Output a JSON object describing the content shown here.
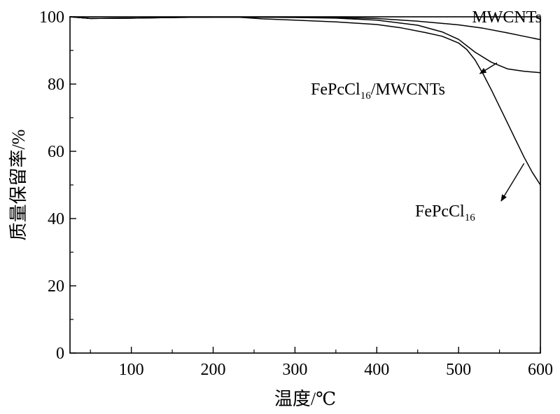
{
  "chart_data": {
    "type": "line",
    "xlabel": "温度/℃",
    "ylabel": "质量保留率/%",
    "xlim": [
      25,
      600
    ],
    "ylim": [
      0,
      100
    ],
    "x_ticks": [
      100,
      200,
      300,
      400,
      500,
      600
    ],
    "y_ticks": [
      0,
      20,
      40,
      60,
      80,
      100
    ],
    "x_tick_labels": [
      "100",
      "200",
      "300",
      "400",
      "500",
      "600"
    ],
    "y_tick_labels": [
      "0",
      "20",
      "40",
      "60",
      "80",
      "100"
    ],
    "grid": false,
    "legend": "none",
    "series": [
      {
        "name": "MWCNTs",
        "x": [
          25,
          50,
          100,
          150,
          200,
          250,
          300,
          350,
          400,
          450,
          500,
          530,
          560,
          580,
          600
        ],
        "y": [
          100,
          99.5,
          99.6,
          99.8,
          99.9,
          99.9,
          99.9,
          99.8,
          99.5,
          98.7,
          97.6,
          96.6,
          95.2,
          94.2,
          93.2
        ]
      },
      {
        "name": "FePcCl16/MWCNTs",
        "x": [
          25,
          50,
          100,
          150,
          200,
          250,
          300,
          350,
          400,
          450,
          480,
          500,
          520,
          540,
          560,
          580,
          600
        ],
        "y": [
          100,
          99.5,
          99.6,
          99.8,
          99.9,
          99.9,
          99.8,
          99.6,
          99.0,
          97.5,
          95.5,
          93.3,
          89.5,
          86.5,
          84.5,
          83.8,
          83.4
        ]
      },
      {
        "name": "FePcCl16",
        "x": [
          25,
          50,
          100,
          150,
          200,
          230,
          260,
          300,
          350,
          400,
          430,
          460,
          480,
          500,
          510,
          520,
          530,
          540,
          550,
          560,
          570,
          580,
          590,
          600
        ],
        "y": [
          100,
          99.5,
          99.6,
          99.8,
          99.9,
          99.9,
          99.4,
          99.0,
          98.5,
          97.7,
          96.7,
          95.3,
          94.2,
          92.2,
          90.3,
          87.2,
          83.0,
          78.3,
          73.3,
          68.3,
          63.3,
          58.3,
          53.8,
          50.0
        ]
      }
    ],
    "annotations": [
      {
        "text": "MWCNTs",
        "series": "MWCNTs"
      },
      {
        "text_main": "FePcCl",
        "text_sub": "16",
        "text_rest": "/MWCNTs",
        "series": "FePcCl16/MWCNTs",
        "arrow_from": [
          547,
          86.3
        ],
        "arrow_to": [
          526,
          83.1
        ]
      },
      {
        "text_main": "FePcCl",
        "text_sub": "16",
        "text_rest": "",
        "series": "FePcCl16",
        "arrow_from": [
          580,
          56.4
        ],
        "arrow_to": [
          552,
          45.2
        ]
      }
    ]
  }
}
